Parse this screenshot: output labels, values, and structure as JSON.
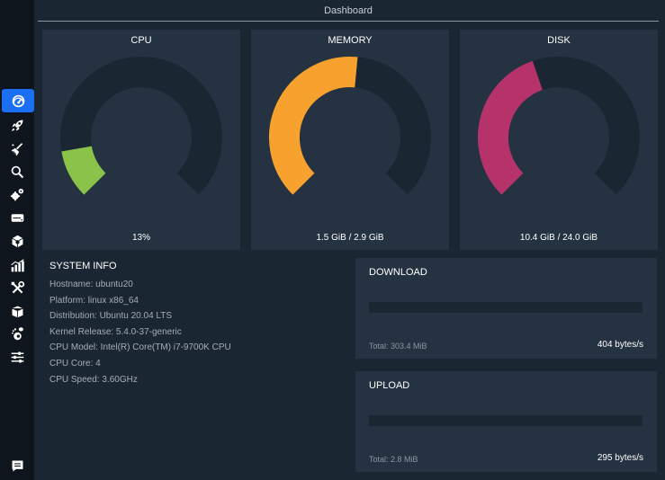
{
  "header": {
    "title": "Dashboard"
  },
  "sidebar": {
    "items": [
      {
        "icon": "speedometer-icon",
        "active": true
      },
      {
        "icon": "rocket-icon"
      },
      {
        "icon": "broom-icon"
      },
      {
        "icon": "search-icon"
      },
      {
        "icon": "gears-icon"
      },
      {
        "icon": "hard-drive-icon"
      },
      {
        "icon": "package-icon"
      },
      {
        "icon": "bar-chart-icon"
      },
      {
        "icon": "tools-icon"
      },
      {
        "icon": "box-icon"
      },
      {
        "icon": "gnome-icon"
      },
      {
        "icon": "sliders-icon"
      }
    ],
    "bottom_icon": "comment-icon"
  },
  "gauges": [
    {
      "title": "CPU",
      "value_text": "13%",
      "fraction": 0.13,
      "color": "#8bc34a"
    },
    {
      "title": "MEMORY",
      "value_text": "1.5 GiB / 2.9 GiB",
      "fraction": 0.52,
      "color": "#f7a22e"
    },
    {
      "title": "DISK",
      "value_text": "10.4 GiB / 24.0 GiB",
      "fraction": 0.43,
      "color": "#b5336a"
    }
  ],
  "gauge_track_color": "#1b2633",
  "system_info": {
    "title": "SYSTEM INFO",
    "rows": [
      "Hostname: ubuntu20",
      "Platform: linux x86_64",
      "Distribution: Ubuntu 20.04 LTS",
      "Kernel Release: 5.4.0-37-generic",
      "CPU Model: Intel(R) Core(TM) i7-9700K CPU",
      "CPU Core: 4",
      "CPU Speed: 3.60GHz"
    ]
  },
  "download": {
    "title": "DOWNLOAD",
    "total": "Total: 303.4 MiB",
    "rate": "404 bytes/s",
    "fill": 0
  },
  "upload": {
    "title": "UPLOAD",
    "total": "Total: 2.8 MiB",
    "rate": "295 bytes/s",
    "fill": 0
  }
}
